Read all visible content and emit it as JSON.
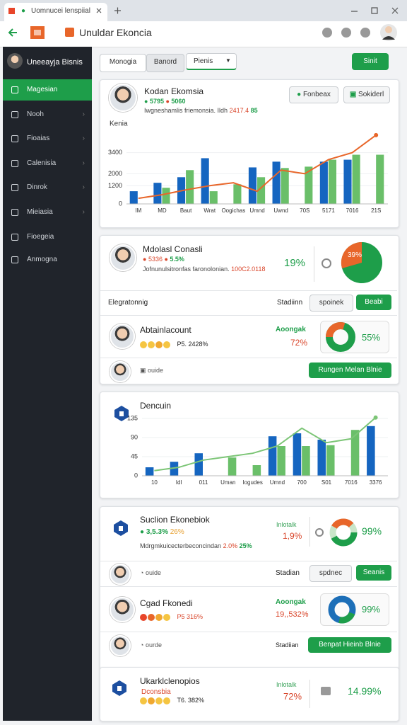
{
  "browser": {
    "tab_title": "Uomnucei lenspiial",
    "page_title": "Unuldar Ekoncia"
  },
  "sidebar": {
    "user": "Uneeayja Bisnis",
    "active": 0,
    "items": [
      "Magesian",
      "Nooh",
      "Fioaias",
      "Calenisia",
      "Dinrok",
      "Mieiasia",
      "Fioegeia",
      "Anmogna"
    ]
  },
  "toolbar": {
    "tabs": [
      "Monogia",
      "Banord"
    ],
    "select": "Pienis",
    "action": "Sinit"
  },
  "profile_card": {
    "name": "Kodan Ekomsia",
    "stats": [
      "5795",
      "5060"
    ],
    "description": "Iwgneshamlis friemonsia. Ildh",
    "highlight": "2417.4",
    "badge": "85",
    "buttons": [
      "Fonbeax",
      "Sokiderl"
    ],
    "chart": {
      "type": "bar",
      "title": "Kenia",
      "categories": [
        "IM",
        "MD",
        "Baut",
        "Wrat",
        "Oogichas",
        "Umnd",
        "Uwnd",
        "70S",
        "5171",
        "7016",
        "21S"
      ],
      "series": [
        {
          "color": "#1565c0",
          "values": [
            840,
            1400,
            1770,
            3030,
            null,
            2420,
            2800,
            null,
            2800,
            2930,
            null
          ]
        },
        {
          "color": "#6abf69",
          "values": [
            null,
            1070,
            2240,
            840,
            1300,
            1770,
            2380,
            2470,
            2930,
            3260,
            3260
          ]
        }
      ],
      "line": {
        "color": "#e8662a",
        "values": [
          370,
          610,
          930,
          1210,
          1400,
          840,
          2240,
          2000,
          2940,
          3400,
          4560
        ]
      },
      "ylim": [
        0,
        4600
      ],
      "yticks": [
        0,
        1200,
        2000,
        3400
      ]
    }
  },
  "consult_card": {
    "name": "Mdolasl Conasli",
    "stats": [
      "5336",
      "5.5%"
    ],
    "description": "Jofnunulsitronfas faronolonian.",
    "highlight": "100C2.0118",
    "rate": "19%",
    "pie_label": "39%",
    "list_header": {
      "title": "Elegratonnig",
      "status": "Stadiinn",
      "buttons": [
        "spoinek",
        "Beabi"
      ]
    },
    "entry": {
      "name": "Abtainlacount",
      "score": "P5. 2428%",
      "tag": "Aoongak",
      "rate": "72%",
      "donut": "55%"
    },
    "footer": {
      "note": "ouide",
      "action": "Rungen Melan Blnie"
    }
  },
  "chart_card": {
    "title": "Dencuin",
    "chart": {
      "type": "bar",
      "categories": [
        "10",
        "IdI",
        "011",
        "Uman",
        "Iogudes",
        "Umnd",
        "700",
        "S01",
        "7016",
        "3376"
      ],
      "series": [
        {
          "color": "#1565c0",
          "values": [
            20,
            33,
            53,
            null,
            null,
            93,
            100,
            85,
            null,
            117
          ]
        },
        {
          "color": "#6abf69",
          "values": [
            null,
            null,
            null,
            43,
            25,
            70,
            70,
            72,
            108,
            null
          ]
        }
      ],
      "line": {
        "color": "#7cc576",
        "values": [
          12,
          20,
          37,
          45,
          53,
          70,
          112,
          78,
          87,
          137
        ]
      },
      "ylim": [
        0,
        145
      ],
      "yticks": [
        0,
        45,
        90,
        135
      ]
    }
  },
  "summary_card": {
    "name": "Suclion Ekonebiok",
    "stats": [
      "3,5.3%",
      "26%"
    ],
    "description": "Mdrgmkuicecterbeconcindan",
    "highlight": "2.0%",
    "badge": "25%",
    "tag": "Inlotalk",
    "rate": "1,9%",
    "donut": "99%",
    "row": {
      "note": "ouide",
      "status": "Stadian",
      "buttons": [
        "spdnec",
        "Seanis"
      ]
    },
    "entry": {
      "name": "Cgad Fkonedi",
      "score": "P5 316%",
      "tag": "Aoongak",
      "rate": "19,,532%",
      "donut": "99%"
    },
    "footer": {
      "note": "ourde",
      "status": "Stadiian",
      "action": "Benpat Hieinb Blnie"
    }
  },
  "last_card": {
    "name": "Ukarklclenopios",
    "subtitle": "Dconsbia",
    "score": "T6. 382%",
    "tag": "Inlotalk",
    "rate": "72%",
    "value": "14.99%"
  }
}
